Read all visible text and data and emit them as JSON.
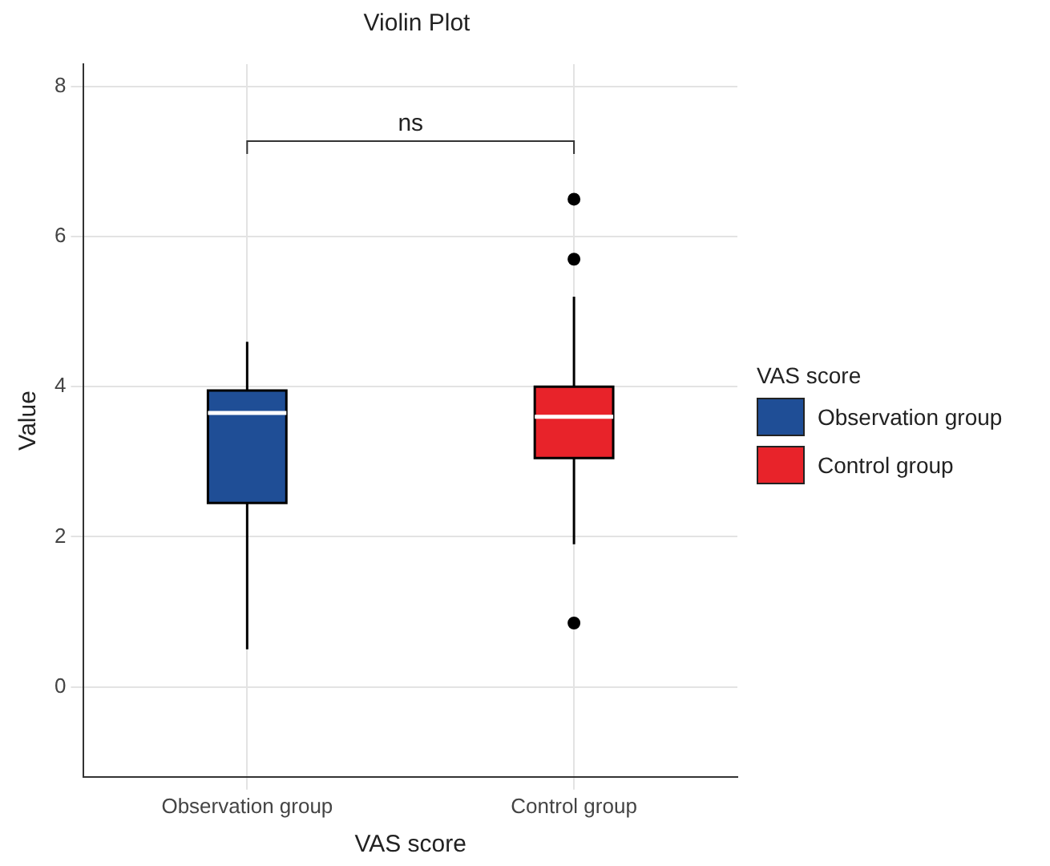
{
  "chart_data": {
    "type": "box",
    "title": "Violin Plot",
    "xlabel": "VAS score",
    "ylabel": "Value",
    "legend_title": "VAS score",
    "legend": "right",
    "grid": true,
    "categories": [
      "Observation group",
      "Control group"
    ],
    "ylim": [
      -1.2,
      8.3
    ],
    "yticks": [
      0,
      2,
      4,
      6,
      8
    ],
    "annotations": [
      "ns"
    ],
    "series": [
      {
        "name": "Observation group",
        "color": "#1f4e96",
        "boxes": [
          {
            "low": 0.5,
            "q1": 2.45,
            "median": 3.65,
            "q3": 3.95,
            "high": 4.6
          },
          null
        ]
      },
      {
        "name": "Control group",
        "color": "#e8232a",
        "boxes": [
          null,
          {
            "low": 1.9,
            "q1": 3.05,
            "median": 3.6,
            "q3": 4.0,
            "high": 5.2,
            "outliers": [
              6.5,
              5.7,
              0.85
            ]
          }
        ]
      }
    ]
  }
}
